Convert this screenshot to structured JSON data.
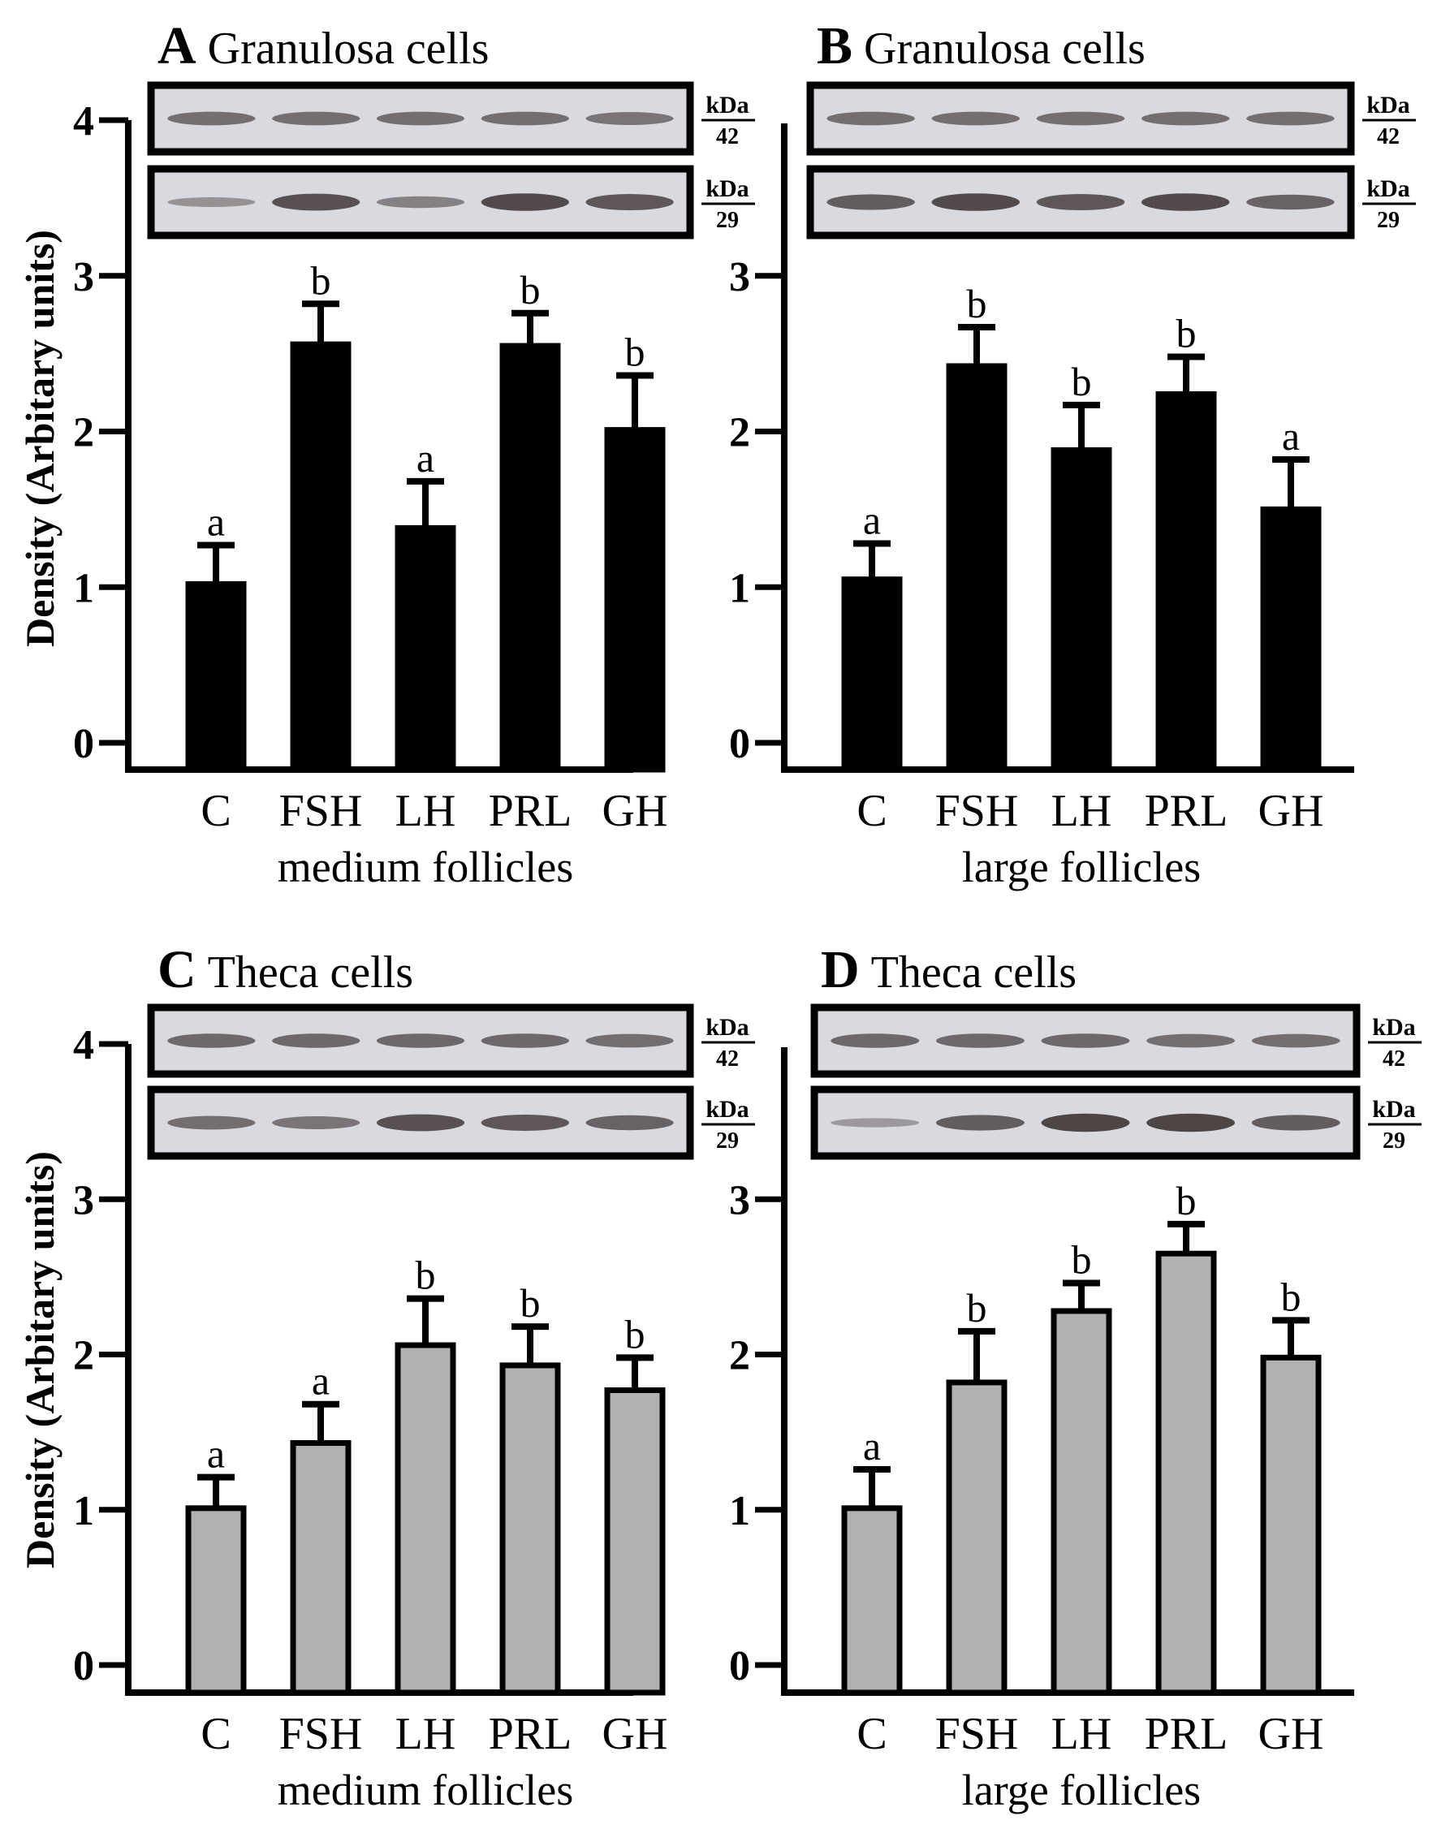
{
  "figure": {
    "y_axis_label": "Density (Arbitary units)",
    "marker_unit": "kDa",
    "marker_upper": "42",
    "marker_lower": "29"
  },
  "colors": {
    "granulosa_bar": "#000000",
    "theca_bar": "#b0b2b1",
    "axis": "#000000",
    "blot_background": "#d9dadf",
    "blot_band": "#3a3030"
  },
  "chart_data": [
    {
      "type": "bar",
      "panel_letter": "A",
      "title": "Granulosa cells",
      "xlabel": "medium follicles",
      "ylabel": "Density (Arbitary units)",
      "categories": [
        "C",
        "FSH",
        "LH",
        "PRL",
        "GH"
      ],
      "values": [
        1.02,
        2.56,
        1.38,
        2.55,
        2.01
      ],
      "errors": [
        0.25,
        0.26,
        0.3,
        0.21,
        0.35
      ],
      "significance": [
        "a",
        "b",
        "a",
        "b",
        "b"
      ],
      "ylim": [
        0,
        4
      ],
      "yticks": [
        0,
        1,
        2,
        3,
        4
      ],
      "blot_upper_intensity": [
        0.55,
        0.55,
        0.55,
        0.55,
        0.5
      ],
      "blot_lower_intensity": [
        0.25,
        0.8,
        0.4,
        0.85,
        0.75
      ]
    },
    {
      "type": "bar",
      "panel_letter": "B",
      "title": "Granulosa cells",
      "xlabel": "large follicles",
      "ylabel": "",
      "categories": [
        "C",
        "FSH",
        "LH",
        "PRL",
        "GH"
      ],
      "values": [
        1.05,
        2.42,
        1.88,
        2.24,
        1.5
      ],
      "errors": [
        0.23,
        0.25,
        0.29,
        0.24,
        0.32
      ],
      "significance": [
        "a",
        "b",
        "b",
        "b",
        "a"
      ],
      "ylim": [
        0,
        4
      ],
      "yticks": [
        0,
        1,
        2,
        3
      ],
      "blot_upper_intensity": [
        0.55,
        0.55,
        0.55,
        0.55,
        0.55
      ],
      "blot_lower_intensity": [
        0.7,
        0.85,
        0.75,
        0.85,
        0.65
      ]
    },
    {
      "type": "bar",
      "panel_letter": "C",
      "title": "Theca cells",
      "xlabel": "medium follicles",
      "ylabel": "Density (Arbitary units)",
      "categories": [
        "C",
        "FSH",
        "LH",
        "PRL",
        "GH"
      ],
      "values": [
        1.01,
        1.43,
        2.06,
        1.93,
        1.77
      ],
      "errors": [
        0.2,
        0.25,
        0.3,
        0.25,
        0.21
      ],
      "significance": [
        "a",
        "a",
        "b",
        "b",
        "b"
      ],
      "ylim": [
        0,
        4
      ],
      "yticks": [
        0,
        1,
        2,
        3,
        4
      ],
      "blot_upper_intensity": [
        0.6,
        0.6,
        0.6,
        0.6,
        0.55
      ],
      "blot_lower_intensity": [
        0.55,
        0.5,
        0.8,
        0.75,
        0.65
      ]
    },
    {
      "type": "bar",
      "panel_letter": "D",
      "title": "Theca cells",
      "xlabel": "large follicles",
      "ylabel": "",
      "categories": [
        "C",
        "FSH",
        "LH",
        "PRL",
        "GH"
      ],
      "values": [
        1.01,
        1.82,
        2.28,
        2.65,
        1.98
      ],
      "errors": [
        0.25,
        0.33,
        0.18,
        0.19,
        0.24
      ],
      "significance": [
        "a",
        "b",
        "b",
        "b",
        "b"
      ],
      "ylim": [
        0,
        4
      ],
      "yticks": [
        0,
        1,
        2,
        3
      ],
      "blot_upper_intensity": [
        0.6,
        0.6,
        0.6,
        0.55,
        0.55
      ],
      "blot_lower_intensity": [
        0.2,
        0.7,
        0.9,
        0.9,
        0.7
      ]
    }
  ]
}
